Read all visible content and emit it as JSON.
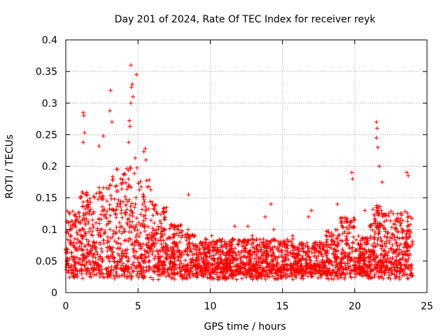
{
  "chart_data": {
    "type": "scatter",
    "title": "Day 201 of 2024, Rate Of TEC Index for receiver reyk",
    "xlabel": "GPS time / hours",
    "ylabel": "ROTI / TECUs",
    "xlim": [
      0,
      25
    ],
    "ylim": [
      0,
      0.4
    ],
    "xticks": [
      0,
      5,
      10,
      15,
      20,
      25
    ],
    "yticks": [
      0,
      0.05,
      0.1,
      0.15,
      0.2,
      0.25,
      0.3,
      0.35,
      0.4
    ],
    "xtick_labels": [
      "0",
      "5",
      "10",
      "15",
      "20",
      "25"
    ],
    "ytick_labels": [
      "0",
      "0.05",
      "0.1",
      "0.15",
      "0.2",
      "0.25",
      "0.3",
      "0.35",
      "0.4"
    ],
    "grid": true,
    "marker": "+",
    "color": "#ff0000",
    "series": [
      {
        "name": "ROTI",
        "x_range": [
          0,
          24
        ],
        "note": "dense cloud of + markers; typical ROTI 0.03-0.09 TECU/min",
        "points": [
          [
            4.5,
            0.36
          ],
          [
            4.9,
            0.345
          ],
          [
            4.6,
            0.33
          ],
          [
            4.55,
            0.325
          ],
          [
            3.1,
            0.32
          ],
          [
            4.65,
            0.31
          ],
          [
            4.5,
            0.3
          ],
          [
            3.05,
            0.288
          ],
          [
            1.2,
            0.285
          ],
          [
            1.25,
            0.28
          ],
          [
            3.2,
            0.27
          ],
          [
            21.5,
            0.27
          ],
          [
            21.55,
            0.26
          ],
          [
            4.4,
            0.272
          ],
          [
            4.45,
            0.263
          ],
          [
            21.5,
            0.245
          ],
          [
            1.3,
            0.253
          ],
          [
            2.6,
            0.248
          ],
          [
            4.35,
            0.238
          ],
          [
            1.2,
            0.238
          ],
          [
            5.5,
            0.228
          ],
          [
            5.4,
            0.223
          ],
          [
            21.6,
            0.23
          ],
          [
            2.3,
            0.232
          ],
          [
            21.7,
            0.2
          ],
          [
            5.55,
            0.21
          ],
          [
            4.8,
            0.213
          ],
          [
            23.6,
            0.19
          ],
          [
            23.7,
            0.185
          ],
          [
            19.8,
            0.19
          ],
          [
            19.85,
            0.18
          ],
          [
            21.9,
            0.175
          ],
          [
            8.5,
            0.155
          ],
          [
            14.2,
            0.14
          ],
          [
            17.0,
            0.13
          ],
          [
            18.8,
            0.14
          ],
          [
            20.7,
            0.13
          ],
          [
            16.8,
            0.12
          ],
          [
            12.6,
            0.105
          ],
          [
            13.8,
            0.12
          ],
          [
            11.7,
            0.105
          ],
          [
            10.1,
            0.09
          ],
          [
            15.7,
            0.09
          ],
          [
            14.4,
            0.1
          ],
          [
            12.9,
            0.09
          ]
        ]
      }
    ]
  }
}
